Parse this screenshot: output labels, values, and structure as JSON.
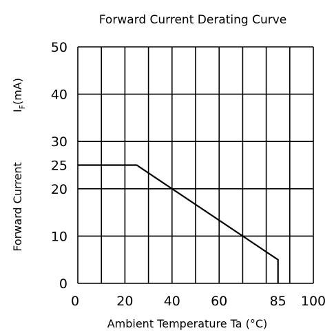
{
  "chart_data": {
    "type": "line",
    "title": "Forward Current Derating Curve",
    "xlabel": "Ambient Temperature Ta (°C)",
    "ylabel": {
      "main": "Forward Current",
      "symbol": "I",
      "subscript": "F",
      "unit": "(mA)"
    },
    "xlim": [
      0,
      100
    ],
    "ylim": [
      0,
      50
    ],
    "grid": true,
    "x_ticks": [
      {
        "value": 0,
        "label": "0"
      },
      {
        "value": 20,
        "label": "20"
      },
      {
        "value": 40,
        "label": "40"
      },
      {
        "value": 60,
        "label": "60"
      },
      {
        "value": 85,
        "label": "85"
      },
      {
        "value": 100,
        "label": "100"
      }
    ],
    "y_ticks": [
      {
        "value": 0,
        "label": "0"
      },
      {
        "value": 10,
        "label": "10"
      },
      {
        "value": 20,
        "label": "20"
      },
      {
        "value": 25,
        "label": "25"
      },
      {
        "value": 30,
        "label": "30"
      },
      {
        "value": 40,
        "label": "40"
      },
      {
        "value": 50,
        "label": "50"
      }
    ],
    "x_grid": [
      0,
      10,
      20,
      30,
      40,
      50,
      60,
      70,
      80,
      90,
      100
    ],
    "y_grid": [
      0,
      10,
      20,
      30,
      40,
      50
    ],
    "series": [
      {
        "values": [
          {
            "x": 0,
            "y": 25
          },
          {
            "x": 25,
            "y": 25
          },
          {
            "x": 85,
            "y": 5
          },
          {
            "x": 85,
            "y": 0
          }
        ]
      }
    ],
    "line_color": "#000000",
    "grid_color": "#000000"
  }
}
